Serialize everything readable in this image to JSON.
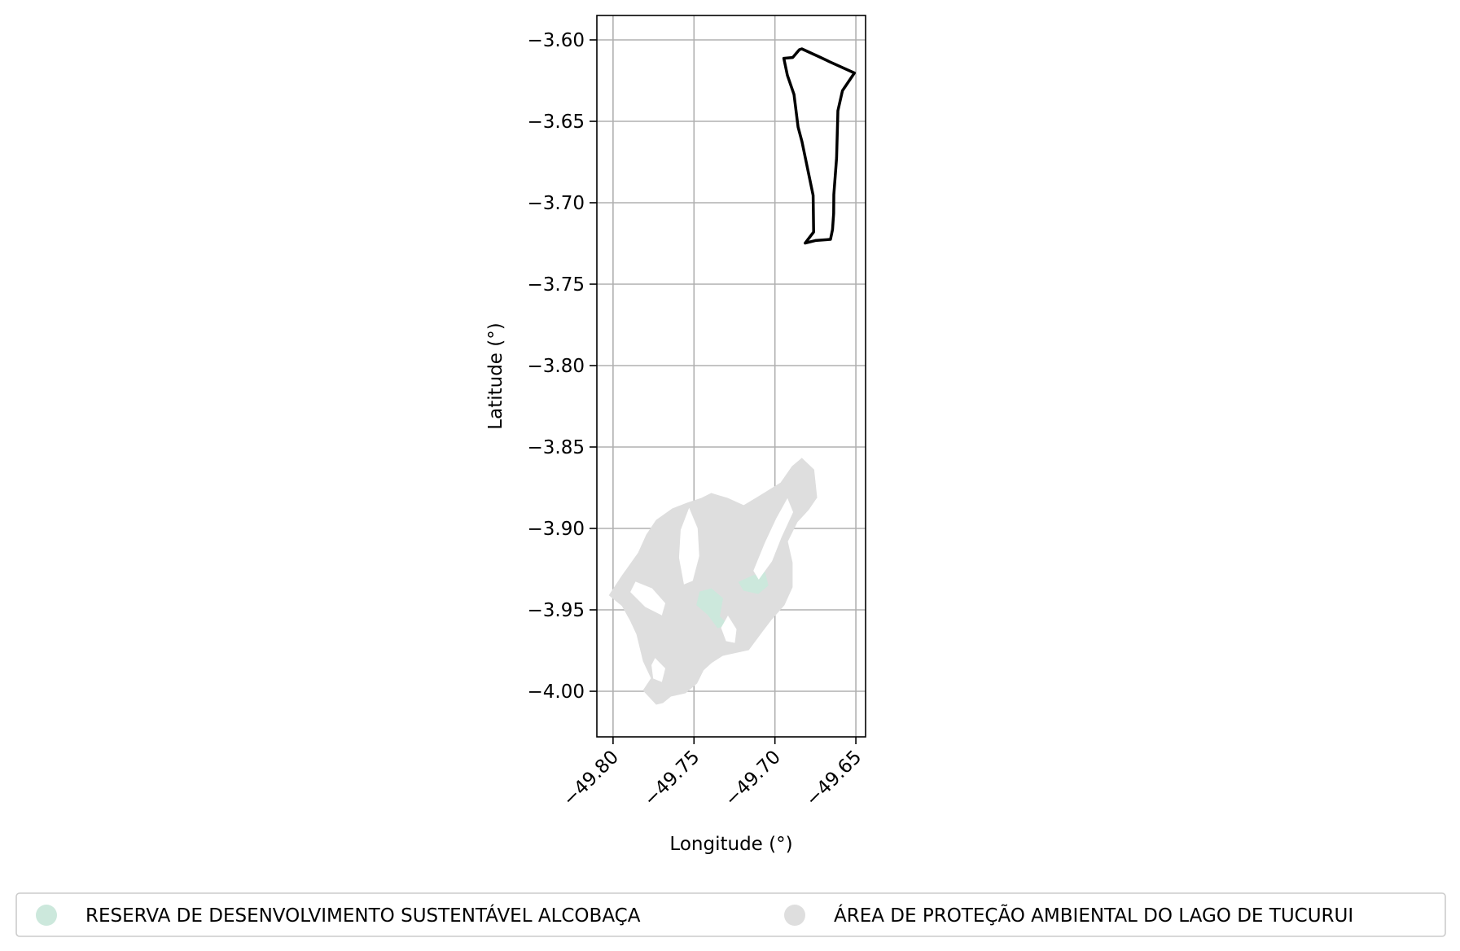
{
  "chart_data": {
    "type": "map",
    "xlabel": "Longitude (°)",
    "ylabel": "Latitude (°)",
    "xlim": [
      -49.81,
      -49.644
    ],
    "ylim": [
      -4.028,
      -3.585
    ],
    "x_ticks": [
      -49.8,
      -49.75,
      -49.7,
      -49.65
    ],
    "x_tick_labels": [
      "−49.80",
      "−49.75",
      "−49.70",
      "−49.65"
    ],
    "y_ticks": [
      -3.6,
      -3.65,
      -3.7,
      -3.75,
      -3.8,
      -3.85,
      -3.9,
      -3.95,
      -4.0
    ],
    "y_tick_labels": [
      "−3.60",
      "−3.65",
      "−3.70",
      "−3.75",
      "−3.80",
      "−3.85",
      "−3.90",
      "−3.95",
      "−4.00"
    ],
    "grid": true,
    "legend_position": "bottom",
    "legend": [
      {
        "label": "RESERVA DE DESENVOLVIMENTO SUSTENTÁVEL ALCOBAÇA",
        "color": "#cce8dc"
      },
      {
        "label": "ÁREA DE PROTEÇÃO AMBIENTAL DO LAGO DE TUCURUI",
        "color": "#dedede"
      }
    ],
    "features": [
      {
        "name": "boundary-outline",
        "style": "outline",
        "color": "#000000",
        "coordinates": [
          [
            -49.6834,
            -3.6055
          ],
          [
            -49.6717,
            -3.6108
          ],
          [
            -49.6663,
            -3.6134
          ],
          [
            -49.6509,
            -3.6203
          ],
          [
            -49.6583,
            -3.6312
          ],
          [
            -49.6611,
            -3.6435
          ],
          [
            -49.6612,
            -3.6475
          ],
          [
            -49.6619,
            -3.6725
          ],
          [
            -49.6636,
            -3.695
          ],
          [
            -49.6637,
            -3.7065
          ],
          [
            -49.6644,
            -3.7165
          ],
          [
            -49.6657,
            -3.7225
          ],
          [
            -49.675,
            -3.7232
          ],
          [
            -49.6813,
            -3.7248
          ],
          [
            -49.6761,
            -3.718
          ],
          [
            -49.6764,
            -3.6955
          ],
          [
            -49.6833,
            -3.6625
          ],
          [
            -49.6857,
            -3.6535
          ],
          [
            -49.6882,
            -3.6335
          ],
          [
            -49.6923,
            -3.6218
          ],
          [
            -49.6945,
            -3.6113
          ],
          [
            -49.689,
            -3.6108
          ],
          [
            -49.6849,
            -3.606
          ],
          [
            -49.6834,
            -3.6055
          ]
        ]
      },
      {
        "name": "apa-lago-tucurui",
        "style": "fill",
        "color": "#dedede",
        "coordinates": [
          [
            -49.6834,
            -3.857
          ],
          [
            -49.676,
            -3.864
          ],
          [
            -49.6742,
            -3.881
          ],
          [
            -49.6793,
            -3.8885
          ],
          [
            -49.6863,
            -3.896
          ],
          [
            -49.6923,
            -3.908
          ],
          [
            -49.6893,
            -3.921
          ],
          [
            -49.6893,
            -3.936
          ],
          [
            -49.6943,
            -3.947
          ],
          [
            -49.7023,
            -3.956
          ],
          [
            -49.7073,
            -3.9625
          ],
          [
            -49.7163,
            -3.9745
          ],
          [
            -49.7323,
            -3.978
          ],
          [
            -49.7393,
            -3.9825
          ],
          [
            -49.7443,
            -3.987
          ],
          [
            -49.7483,
            -3.995
          ],
          [
            -49.7553,
            -4.001
          ],
          [
            -49.7643,
            -4.003
          ],
          [
            -49.7693,
            -4.007
          ],
          [
            -49.7733,
            -4.008
          ],
          [
            -49.7813,
            -3.9995
          ],
          [
            -49.7763,
            -3.992
          ],
          [
            -49.7813,
            -3.9815
          ],
          [
            -49.7853,
            -3.965
          ],
          [
            -49.7893,
            -3.9565
          ],
          [
            -49.7943,
            -3.9475
          ],
          [
            -49.8023,
            -3.941
          ],
          [
            -49.7943,
            -3.929
          ],
          [
            -49.7843,
            -3.915
          ],
          [
            -49.7793,
            -3.904
          ],
          [
            -49.7733,
            -3.895
          ],
          [
            -49.7633,
            -3.888
          ],
          [
            -49.7543,
            -3.8845
          ],
          [
            -49.7453,
            -3.8815
          ],
          [
            -49.7393,
            -3.8785
          ],
          [
            -49.7293,
            -3.8815
          ],
          [
            -49.7193,
            -3.886
          ],
          [
            -49.7093,
            -3.88
          ],
          [
            -49.6963,
            -3.872
          ],
          [
            -49.6893,
            -3.862
          ],
          [
            -49.6834,
            -3.857
          ]
        ]
      },
      {
        "name": "resex-alcobaca-a",
        "style": "fill",
        "color": "#cce8dc",
        "coordinates": [
          [
            -49.7223,
            -3.933
          ],
          [
            -49.7133,
            -3.929
          ],
          [
            -49.7063,
            -3.927
          ],
          [
            -49.7043,
            -3.935
          ],
          [
            -49.7103,
            -3.94
          ],
          [
            -49.7193,
            -3.938
          ],
          [
            -49.7223,
            -3.933
          ]
        ]
      },
      {
        "name": "resex-alcobaca-b",
        "style": "fill",
        "color": "#cce8dc",
        "coordinates": [
          [
            -49.7463,
            -3.939
          ],
          [
            -49.7393,
            -3.937
          ],
          [
            -49.7323,
            -3.943
          ],
          [
            -49.7343,
            -3.954
          ],
          [
            -49.7293,
            -3.959
          ],
          [
            -49.7353,
            -3.961
          ],
          [
            -49.7413,
            -3.953
          ],
          [
            -49.7483,
            -3.947
          ],
          [
            -49.7463,
            -3.939
          ]
        ]
      }
    ],
    "gaps": [
      [
        [
          -49.6923,
          -3.882
        ],
        [
          -49.699,
          -3.894
        ],
        [
          -49.706,
          -3.909
        ],
        [
          -49.713,
          -3.926
        ],
        [
          -49.71,
          -3.931
        ],
        [
          -49.702,
          -3.92
        ],
        [
          -49.696,
          -3.905
        ],
        [
          -49.689,
          -3.89
        ],
        [
          -49.6923,
          -3.882
        ]
      ],
      [
        [
          -49.753,
          -3.888
        ],
        [
          -49.748,
          -3.9
        ],
        [
          -49.747,
          -3.917
        ],
        [
          -49.751,
          -3.932
        ],
        [
          -49.756,
          -3.934
        ],
        [
          -49.759,
          -3.918
        ],
        [
          -49.758,
          -3.901
        ],
        [
          -49.753,
          -3.888
        ]
      ],
      [
        [
          -49.786,
          -3.933
        ],
        [
          -49.776,
          -3.937
        ],
        [
          -49.768,
          -3.946
        ],
        [
          -49.77,
          -3.953
        ],
        [
          -49.78,
          -3.948
        ],
        [
          -49.789,
          -3.939
        ],
        [
          -49.786,
          -3.933
        ]
      ],
      [
        [
          -49.729,
          -3.954
        ],
        [
          -49.724,
          -3.962
        ],
        [
          -49.725,
          -3.97
        ],
        [
          -49.73,
          -3.969
        ],
        [
          -49.733,
          -3.961
        ],
        [
          -49.729,
          -3.954
        ]
      ],
      [
        [
          -49.774,
          -3.98
        ],
        [
          -49.768,
          -3.986
        ],
        [
          -49.77,
          -3.994
        ],
        [
          -49.775,
          -3.992
        ],
        [
          -49.776,
          -3.984
        ],
        [
          -49.774,
          -3.98
        ]
      ]
    ]
  }
}
